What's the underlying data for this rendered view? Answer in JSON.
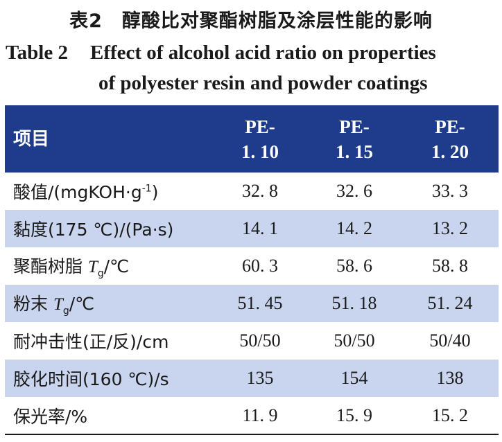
{
  "caption": {
    "cn_label": "表2",
    "cn_title": "醇酸比对聚酯树脂及涂层性能的影响",
    "en_label": "Table 2",
    "en_title_line1": "Effect of alcohol acid ratio on properties",
    "en_title_line2": "of polyester resin and powder coatings"
  },
  "table": {
    "header": {
      "item": "项目",
      "samples": [
        {
          "line1": "PE-",
          "line2": "1. 10"
        },
        {
          "line1": "PE-",
          "line2": "1. 15"
        },
        {
          "line1": "PE-",
          "line2": "1. 20"
        }
      ]
    },
    "rows": [
      {
        "label_pre": "酸值/(mgKOH·g",
        "label_sup": "-1",
        "label_post": ")",
        "values": [
          "32. 8",
          "32. 6",
          "33. 3"
        ]
      },
      {
        "label": "黏度(175 ℃)/(Pa·s)",
        "values": [
          "14. 1",
          "14. 2",
          "13. 2"
        ]
      },
      {
        "label_pre": "聚酯树脂 ",
        "label_sym": "T",
        "label_sub": "g",
        "label_post": "/℃",
        "values": [
          "60. 3",
          "58. 6",
          "58. 8"
        ]
      },
      {
        "label_pre": "粉末 ",
        "label_sym": "T",
        "label_sub": "g",
        "label_post": "/℃",
        "values": [
          "51. 45",
          "51. 18",
          "51. 24"
        ]
      },
      {
        "label": "耐冲击性(正/反)/cm",
        "values": [
          "50/50",
          "50/50",
          "50/40"
        ]
      },
      {
        "label": "胶化时间(160 ℃)/s",
        "values": [
          "135",
          "154",
          "138"
        ]
      },
      {
        "label": "保光率/%",
        "values": [
          "11. 9",
          "15. 9",
          "15. 2"
        ]
      }
    ]
  }
}
